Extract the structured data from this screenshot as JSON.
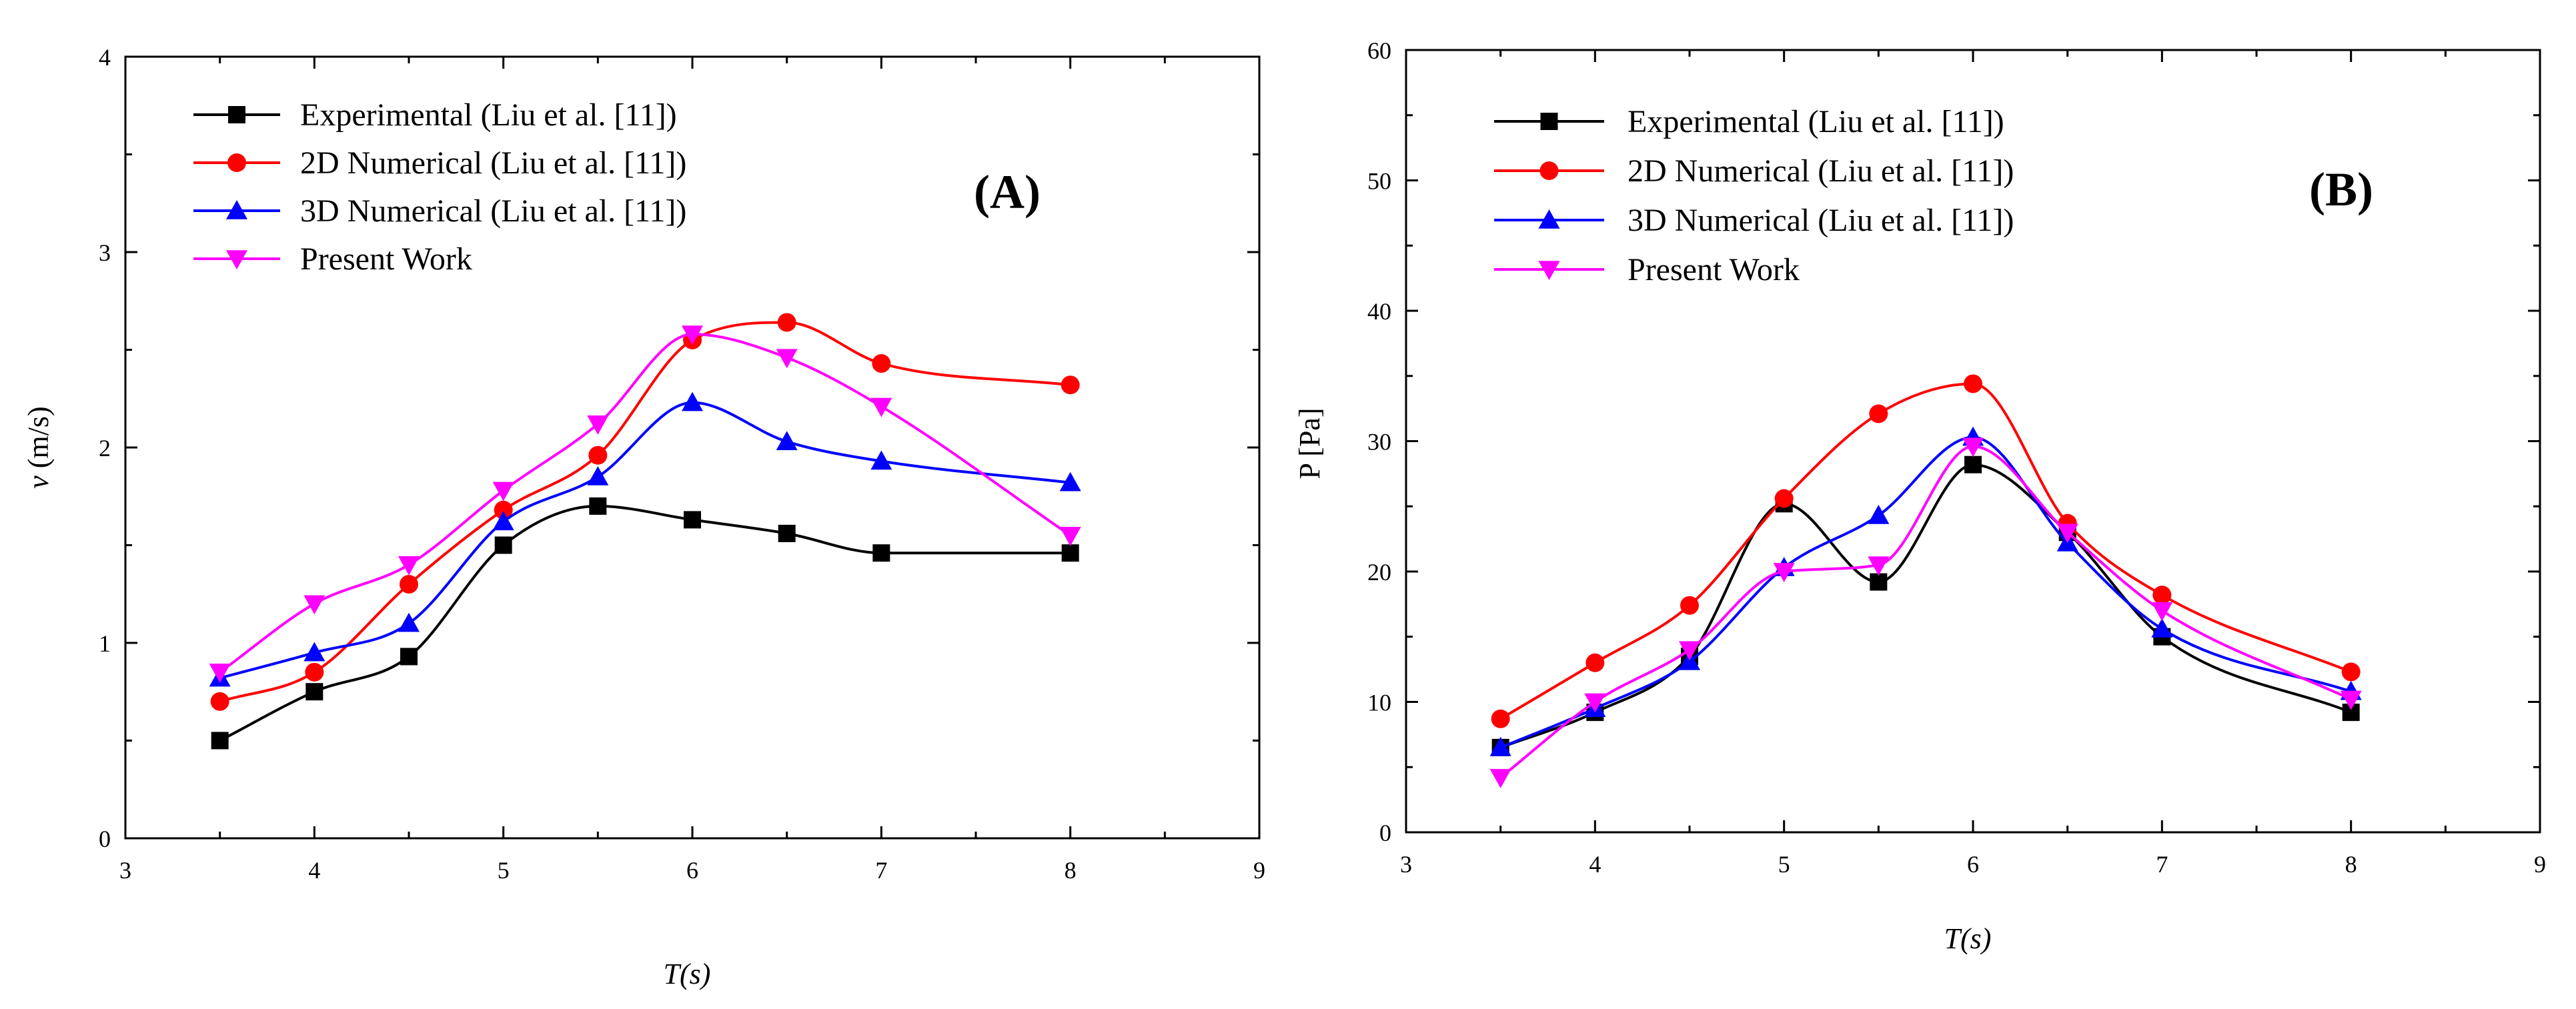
{
  "chart_data": [
    {
      "type": "line",
      "panel_label": "(A)",
      "xlabel": "T(s)",
      "ylabel_symbol": "v",
      "ylabel_unit": " (m/s)",
      "xlim": [
        3,
        9
      ],
      "ylim": [
        0,
        4
      ],
      "xticks": [
        3,
        4,
        5,
        6,
        7,
        8,
        9
      ],
      "yticks": [
        0,
        1,
        2,
        3,
        4
      ],
      "grid": false,
      "legend_position": "top-left",
      "series": [
        {
          "name": "Experimental (Liu et al. [11])",
          "color": "#000000",
          "marker": "square",
          "x": [
            3.5,
            4,
            4.5,
            5,
            5.5,
            6,
            6.5,
            7,
            8
          ],
          "y": [
            0.5,
            0.75,
            0.93,
            1.5,
            1.7,
            1.63,
            1.56,
            1.46,
            1.46
          ]
        },
        {
          "name": "2D Numerical (Liu et al. [11])",
          "color": "#ff0000",
          "marker": "circle",
          "x": [
            3.5,
            4,
            4.5,
            5,
            5.5,
            6,
            6.5,
            7,
            8
          ],
          "y": [
            0.7,
            0.85,
            1.3,
            1.68,
            1.96,
            2.55,
            2.64,
            2.43,
            2.32
          ]
        },
        {
          "name": "3D Numerical (Liu et al. [11])",
          "color": "#0000ff",
          "marker": "triangle-up",
          "x": [
            3.5,
            4,
            4.5,
            5,
            5.5,
            6,
            6.5,
            7,
            8
          ],
          "y": [
            0.82,
            0.95,
            1.1,
            1.62,
            1.85,
            2.23,
            2.03,
            1.93,
            1.82
          ]
        },
        {
          "name": "Present Work",
          "color": "#ff00ff",
          "marker": "triangle-down",
          "x": [
            3.5,
            4,
            4.5,
            5,
            5.5,
            6,
            6.5,
            7,
            8
          ],
          "y": [
            0.85,
            1.2,
            1.4,
            1.78,
            2.12,
            2.58,
            2.46,
            2.21,
            1.55
          ]
        }
      ]
    },
    {
      "type": "line",
      "panel_label": "(B)",
      "xlabel": "T(s)",
      "ylabel": "P [Pa]",
      "xlim": [
        3,
        9
      ],
      "ylim": [
        0,
        60
      ],
      "xticks": [
        3,
        4,
        5,
        6,
        7,
        8,
        9
      ],
      "yticks": [
        0,
        10,
        20,
        30,
        40,
        50,
        60
      ],
      "grid": false,
      "legend_position": "top-left",
      "series": [
        {
          "name": "Experimental (Liu et al. [11])",
          "color": "#000000",
          "marker": "square",
          "x": [
            3.5,
            4,
            4.5,
            5,
            5.5,
            6,
            6.5,
            7,
            8
          ],
          "y": [
            6.5,
            9.2,
            13.5,
            25.2,
            19.2,
            28.2,
            23.0,
            15.0,
            9.2
          ]
        },
        {
          "name": "2D Numerical (Liu et al. [11])",
          "color": "#ff0000",
          "marker": "circle",
          "x": [
            3.5,
            4,
            4.5,
            5,
            5.5,
            6,
            6.5,
            7,
            8
          ],
          "y": [
            8.7,
            13.0,
            17.4,
            25.6,
            32.1,
            34.4,
            23.7,
            18.2,
            12.3
          ]
        },
        {
          "name": "3D Numerical (Liu et al. [11])",
          "color": "#0000ff",
          "marker": "triangle-up",
          "x": [
            3.5,
            4,
            4.5,
            5,
            5.5,
            6,
            6.5,
            7,
            8
          ],
          "y": [
            6.5,
            9.5,
            13.1,
            20.3,
            24.3,
            30.3,
            22.2,
            15.6,
            10.8
          ]
        },
        {
          "name": "Present Work",
          "color": "#ff00ff",
          "marker": "triangle-down",
          "x": [
            3.5,
            4,
            4.5,
            5,
            5.5,
            6,
            6.5,
            7,
            8
          ],
          "y": [
            4.2,
            10.0,
            14.0,
            20.0,
            20.5,
            29.6,
            23.0,
            17.0,
            10.2
          ]
        }
      ]
    }
  ]
}
